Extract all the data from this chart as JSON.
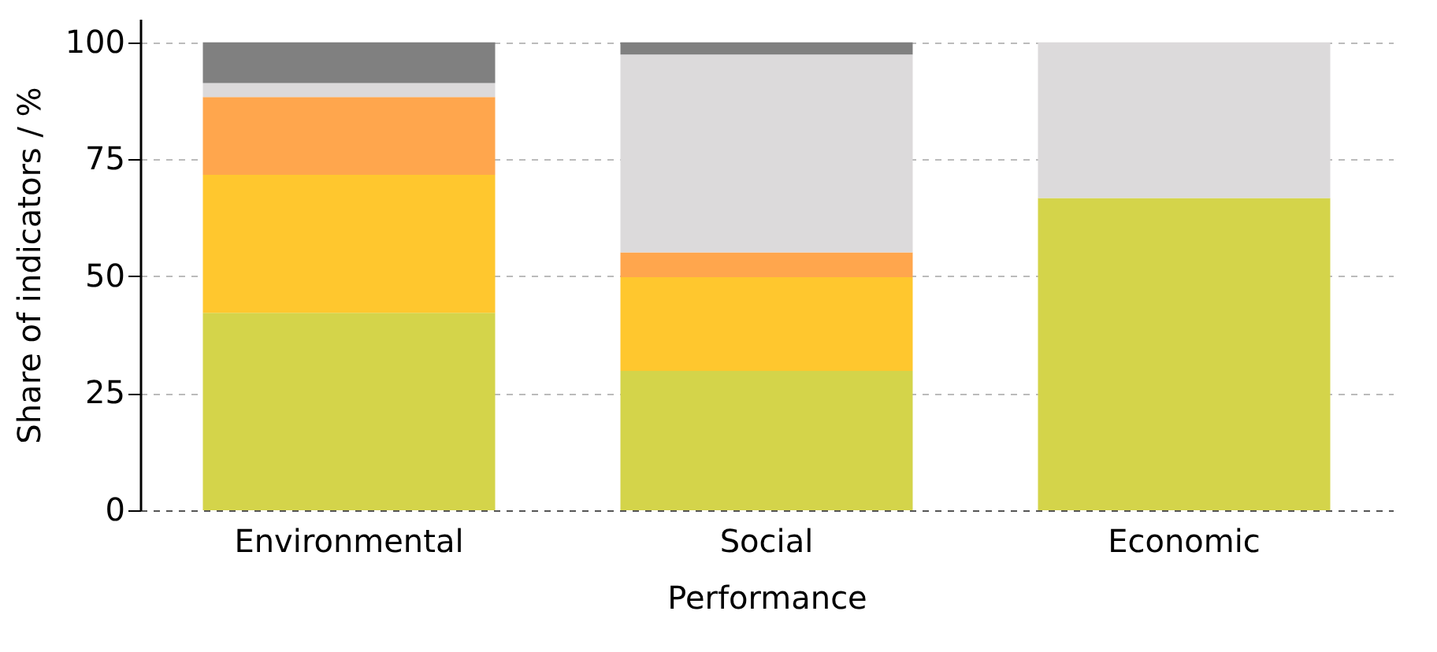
{
  "chart_data": {
    "type": "bar",
    "stacked": true,
    "xlabel": "Performance",
    "ylabel": "Share of indicators / %",
    "categories": [
      "Environmental",
      "Social",
      "Economic"
    ],
    "series": [
      {
        "color": "#d4d44a",
        "values": [
          42.2,
          29.8,
          66.7
        ]
      },
      {
        "color": "#ffc72e",
        "values": [
          29.5,
          20.0,
          0
        ]
      },
      {
        "color": "#ffa64d",
        "values": [
          16.6,
          5.3,
          0
        ]
      },
      {
        "color": "#dcdadb",
        "values": [
          3.0,
          42.3,
          33.3
        ]
      },
      {
        "color": "#808080",
        "values": [
          8.7,
          2.6,
          0
        ]
      }
    ],
    "ylim": [
      0,
      105
    ],
    "yticks": [
      0,
      25,
      50,
      75,
      100
    ],
    "grid": "y",
    "legend": false
  }
}
